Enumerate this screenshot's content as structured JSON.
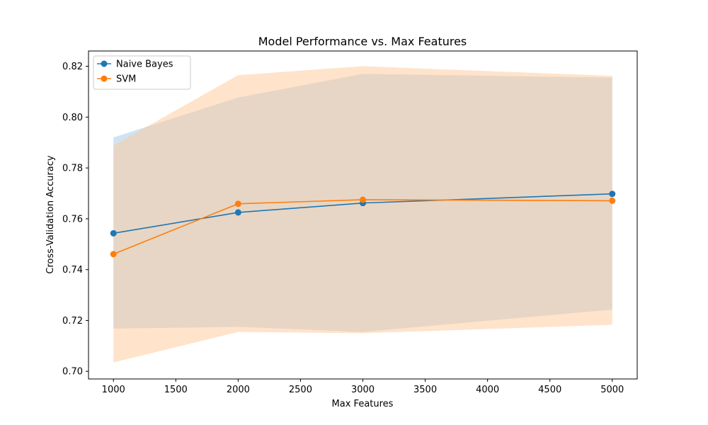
{
  "chart_data": {
    "type": "line",
    "title": "Model Performance vs. Max Features",
    "xlabel": "Max Features",
    "ylabel": "Cross-Validation Accuracy",
    "xlim": [
      800,
      5200
    ],
    "ylim": [
      0.697,
      0.826
    ],
    "xticks": [
      1000,
      1500,
      2000,
      2500,
      3000,
      3500,
      4000,
      4500,
      5000
    ],
    "xtick_labels": [
      "1000",
      "1500",
      "2000",
      "2500",
      "3000",
      "3500",
      "4000",
      "4500",
      "5000"
    ],
    "yticks": [
      0.7,
      0.72,
      0.74,
      0.76,
      0.78,
      0.8,
      0.82
    ],
    "ytick_labels": [
      "0.70",
      "0.72",
      "0.74",
      "0.76",
      "0.78",
      "0.80",
      "0.82"
    ],
    "x": [
      1000,
      2000,
      3000,
      5000
    ],
    "legend_position": "top-left",
    "grid": false,
    "series": [
      {
        "name": "Naive Bayes",
        "color": "#1f77b4",
        "band_color": "#a6cdec",
        "values": [
          0.7543,
          0.7625,
          0.7662,
          0.7698
        ],
        "lower": [
          0.7168,
          0.7175,
          0.7155,
          0.7243
        ],
        "upper": [
          0.792,
          0.8077,
          0.817,
          0.8155
        ]
      },
      {
        "name": "SVM",
        "color": "#ff7f0e",
        "band_color": "#ffc896",
        "values": [
          0.7461,
          0.7659,
          0.7675,
          0.7671
        ],
        "lower": [
          0.7035,
          0.7155,
          0.715,
          0.7183
        ],
        "upper": [
          0.7888,
          0.8165,
          0.82,
          0.8162
        ]
      }
    ]
  }
}
